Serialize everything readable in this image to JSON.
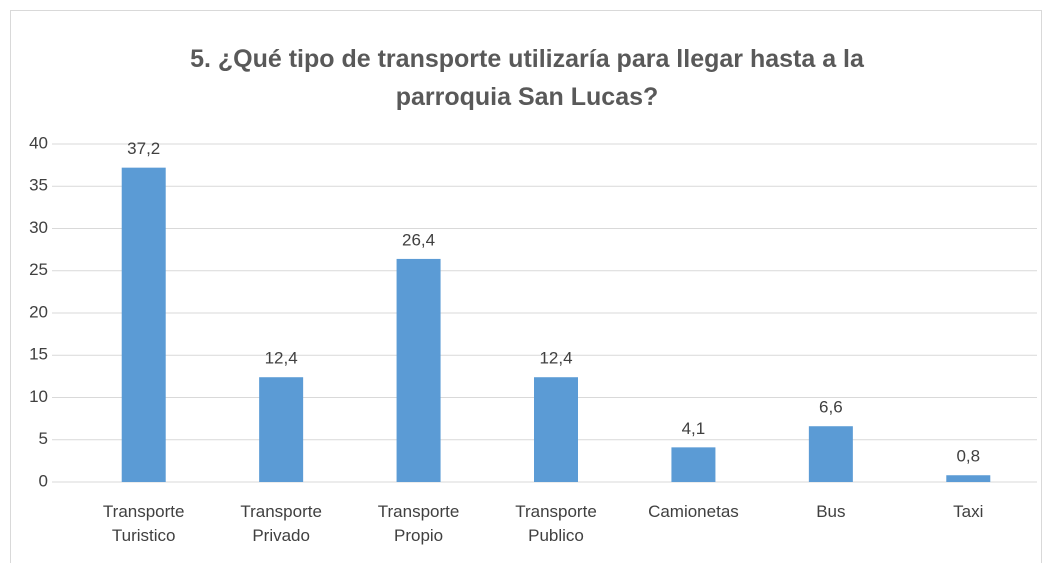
{
  "chart_data": {
    "type": "bar",
    "title": "5. ¿Qué tipo de transporte utilizaría para llegar hasta a la parroquia San Lucas?",
    "categories": [
      "Transporte Turistico",
      "Transporte Privado",
      "Transporte Propio",
      "Transporte Publico",
      "Camionetas",
      "Bus",
      "Taxi"
    ],
    "values": [
      37.2,
      12.4,
      26.4,
      12.4,
      4.1,
      6.6,
      0.8
    ],
    "value_labels": [
      "37,2",
      "12,4",
      "26,4",
      "12,4",
      "4,1",
      "6,6",
      "0,8"
    ],
    "color": "#5b9bd5",
    "ylim": [
      0,
      40
    ],
    "yticks": [
      0,
      5,
      10,
      15,
      20,
      25,
      30,
      35,
      40
    ],
    "grid": true
  }
}
